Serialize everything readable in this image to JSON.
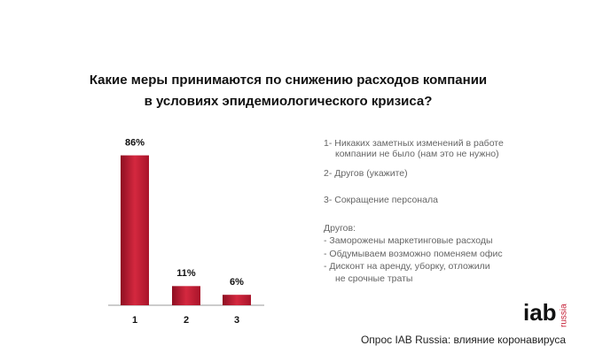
{
  "chart_data": {
    "type": "bar",
    "title": [
      "Какие меры принимаются по снижению расходов компании",
      "в условиях эпидемиологического кризиса?"
    ],
    "categories": [
      "1",
      "2",
      "3"
    ],
    "values": [
      86,
      11,
      6
    ],
    "value_labels": [
      "86%",
      "11%",
      "6%"
    ],
    "color": "#c41e35",
    "notes": [
      {
        "text": "1- Никаких заметных изменений в работе",
        "indent": false
      },
      {
        "text": "компании не было (нам это не нужно)",
        "indent": true
      },
      {
        "text": "2- Другов (укажите)",
        "indent": false
      },
      {
        "text": "3- Сокращение персонала",
        "indent": false
      },
      {
        "text": "Другов:",
        "indent": false
      },
      {
        "text": "- Заморожены маркетинговые расходы",
        "indent": false
      },
      {
        "text": "- Обдумываем возможно поменяем офис",
        "indent": false
      },
      {
        "text": "- Дисконт на аренду, уборку, отложили",
        "indent": false
      },
      {
        "text": "не срочные траты",
        "indent": true
      }
    ],
    "logo": {
      "text": "iab",
      "sub": "russia"
    },
    "source": "Опрос IAB Russia: влияние коронавируса"
  }
}
